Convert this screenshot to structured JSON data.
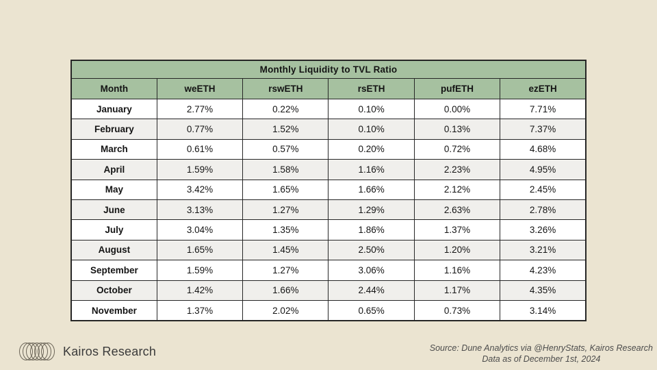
{
  "chart_data": {
    "type": "table",
    "title": "Monthly Liquidity to TVL Ratio",
    "columns": [
      "Month",
      "weETH",
      "rswETH",
      "rsETH",
      "pufETH",
      "ezETH"
    ],
    "rows": [
      [
        "January",
        "2.77%",
        "0.22%",
        "0.10%",
        "0.00%",
        "7.71%"
      ],
      [
        "February",
        "0.77%",
        "1.52%",
        "0.10%",
        "0.13%",
        "7.37%"
      ],
      [
        "March",
        "0.61%",
        "0.57%",
        "0.20%",
        "0.72%",
        "4.68%"
      ],
      [
        "April",
        "1.59%",
        "1.58%",
        "1.16%",
        "2.23%",
        "4.95%"
      ],
      [
        "May",
        "3.42%",
        "1.65%",
        "1.66%",
        "2.12%",
        "2.45%"
      ],
      [
        "June",
        "3.13%",
        "1.27%",
        "1.29%",
        "2.63%",
        "2.78%"
      ],
      [
        "July",
        "3.04%",
        "1.35%",
        "1.86%",
        "1.37%",
        "3.26%"
      ],
      [
        "August",
        "1.65%",
        "1.45%",
        "2.50%",
        "1.20%",
        "3.21%"
      ],
      [
        "September",
        "1.59%",
        "1.27%",
        "3.06%",
        "1.16%",
        "4.23%"
      ],
      [
        "October",
        "1.42%",
        "1.66%",
        "2.44%",
        "1.17%",
        "4.35%"
      ],
      [
        "November",
        "1.37%",
        "2.02%",
        "0.65%",
        "0.73%",
        "3.14%"
      ]
    ],
    "layout": {
      "header_background": "#a6c1a0",
      "row_alt_background": "#f0efec",
      "border_color": "#262626",
      "page_background": "#ebe4d1"
    }
  },
  "footer": {
    "brand": "Kairos Research",
    "source_line1": "Source: Dune Analytics via @HenryStats, Kairos Research",
    "source_line2": "Data as of December 1st, 2024"
  }
}
